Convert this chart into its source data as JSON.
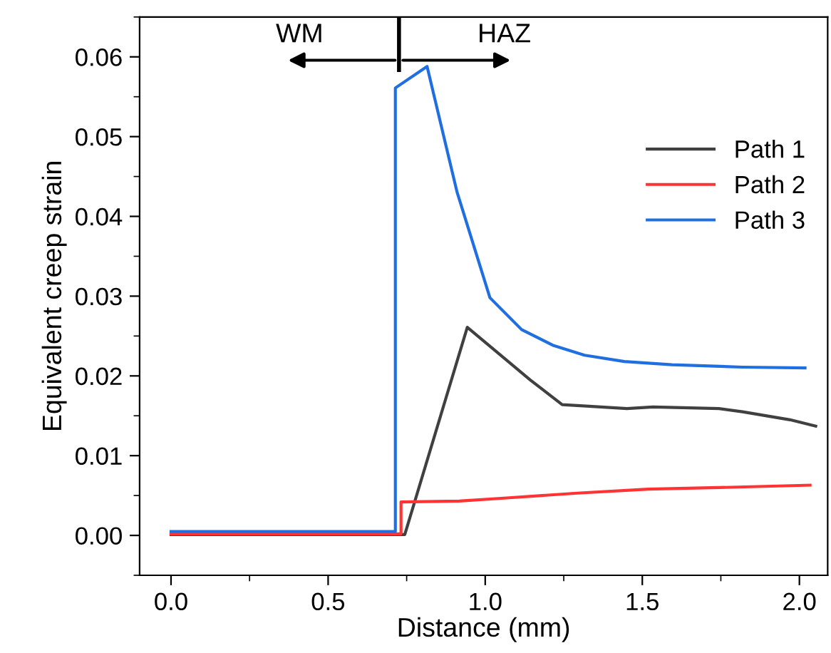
{
  "chart_data": {
    "type": "line",
    "xlabel": "Distance (mm)",
    "ylabel": "Equivalent creep strain",
    "xlim": [
      -0.1,
      2.09
    ],
    "xticks": [
      {
        "value": 0,
        "label": "0.0"
      },
      0.5,
      {
        "value": 1,
        "label": "1.0"
      },
      1.5,
      {
        "value": 2,
        "label": "2.0"
      }
    ],
    "ylim": [
      -0.005,
      0.065
    ],
    "yticks": [
      {
        "value": 0,
        "label": "0.00"
      },
      {
        "value": 0.01,
        "label": "0.01"
      },
      {
        "value": 0.02,
        "label": "0.02"
      },
      {
        "value": 0.03,
        "label": "0.03"
      },
      {
        "value": 0.04,
        "label": "0.04"
      },
      {
        "value": 0.05,
        "label": "0.05"
      },
      {
        "value": 0.06,
        "label": "0.06"
      }
    ],
    "grid": false,
    "legend": "top right",
    "marker": "none",
    "line_style": "solid",
    "annotations": [
      "WM",
      "HAZ"
    ],
    "series": [
      {
        "name": "Path 1",
        "color": "#404040",
        "x": [
          0,
          0.744,
          0.943,
          1.143,
          1.245,
          1.331,
          1.451,
          1.534,
          1.744,
          1.819,
          1.97,
          2.052
        ],
        "values": [
          0.0001,
          0.0001,
          0.0261,
          0.0195,
          0.0164,
          0.0162,
          0.0159,
          0.0161,
          0.0159,
          0.0155,
          0.0145,
          0.0137
        ]
      },
      {
        "name": "Path 2",
        "color": "#ff3333",
        "x": [
          0,
          0.732,
          0.732,
          0.917,
          1.068,
          1.293,
          1.519,
          1.744,
          2.034
        ],
        "values": [
          0.0002,
          0.0002,
          0.0042,
          0.0043,
          0.0047,
          0.0053,
          0.0058,
          0.006,
          0.0063
        ]
      },
      {
        "name": "Path 3",
        "color": "#1f6fe0",
        "x": [
          0,
          0.714,
          0.714,
          0.815,
          0.91,
          1.015,
          1.116,
          1.218,
          1.316,
          1.443,
          1.594,
          1.819,
          2.018
        ],
        "values": [
          0.0005,
          0.0005,
          0.0561,
          0.0588,
          0.0431,
          0.0298,
          0.0258,
          0.0238,
          0.0226,
          0.0218,
          0.0214,
          0.0211,
          0.021
        ]
      }
    ]
  }
}
